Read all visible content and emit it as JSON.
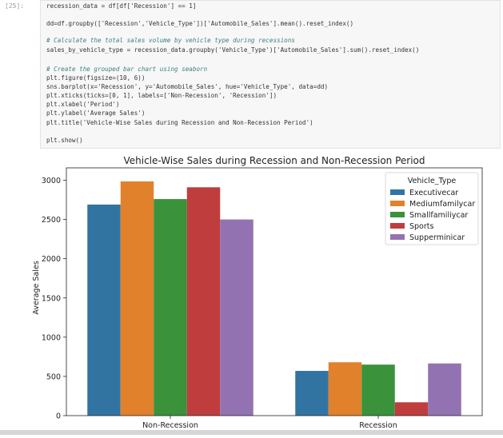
{
  "cell": {
    "prompt": "[25]:",
    "lines": [
      {
        "text": "recession_data = df[df['Recession'] == 1]",
        "kind": "code"
      },
      {
        "text": "dd=df.groupby(['Recession','Vehicle_Type'])['Automobile_Sales'].mean().reset_index()",
        "kind": "code"
      },
      {
        "text": "# Calculate the total sales volume by vehicle type during recessions",
        "kind": "comment"
      },
      {
        "text": "sales_by_vehicle_type = recession_data.groupby('Vehicle_Type')['Automobile_Sales'].sum().reset_index()",
        "kind": "code"
      },
      {
        "text": "# Create the grouped bar chart using seaborn",
        "kind": "comment"
      },
      {
        "text": "plt.figure(figsize=(10, 6))",
        "kind": "code"
      },
      {
        "text": "sns.barplot(x='Recession', y='Automobile_Sales', hue='Vehicle_Type', data=dd)",
        "kind": "code"
      },
      {
        "text": "plt.xticks(ticks=[0, 1], labels=['Non-Recession', 'Recession'])",
        "kind": "code"
      },
      {
        "text": "plt.xlabel('Period')",
        "kind": "code"
      },
      {
        "text": "plt.ylabel('Average Sales')",
        "kind": "code"
      },
      {
        "text": "plt.title('Vehicle-Wise Sales during Recession and Non-Recession Period')",
        "kind": "code"
      },
      {
        "text": "plt.show()",
        "kind": "code"
      }
    ]
  },
  "chart_data": {
    "type": "bar",
    "title": "Vehicle-Wise Sales during Recession and Non-Recession Period",
    "xlabel": "",
    "ylabel": "Average Sales",
    "categories": [
      "Non-Recession",
      "Recession"
    ],
    "ylim": [
      0,
      3200
    ],
    "yticks": [
      0,
      500,
      1000,
      1500,
      2000,
      2500,
      3000
    ],
    "grid": false,
    "legend_title": "Vehicle_Type",
    "legend_position": "top-right",
    "series": [
      {
        "name": "Executivecar",
        "color": "#3274a1",
        "values": [
          2690,
          570
        ]
      },
      {
        "name": "Mediumfamilycar",
        "color": "#e1812c",
        "values": [
          2985,
          680
        ]
      },
      {
        "name": "Smallfamiliycar",
        "color": "#3a923a",
        "values": [
          2760,
          650
        ]
      },
      {
        "name": "Sports",
        "color": "#c03d3e",
        "values": [
          2910,
          170
        ]
      },
      {
        "name": "Supperminicar",
        "color": "#9372b2",
        "values": [
          2500,
          665
        ]
      }
    ]
  }
}
